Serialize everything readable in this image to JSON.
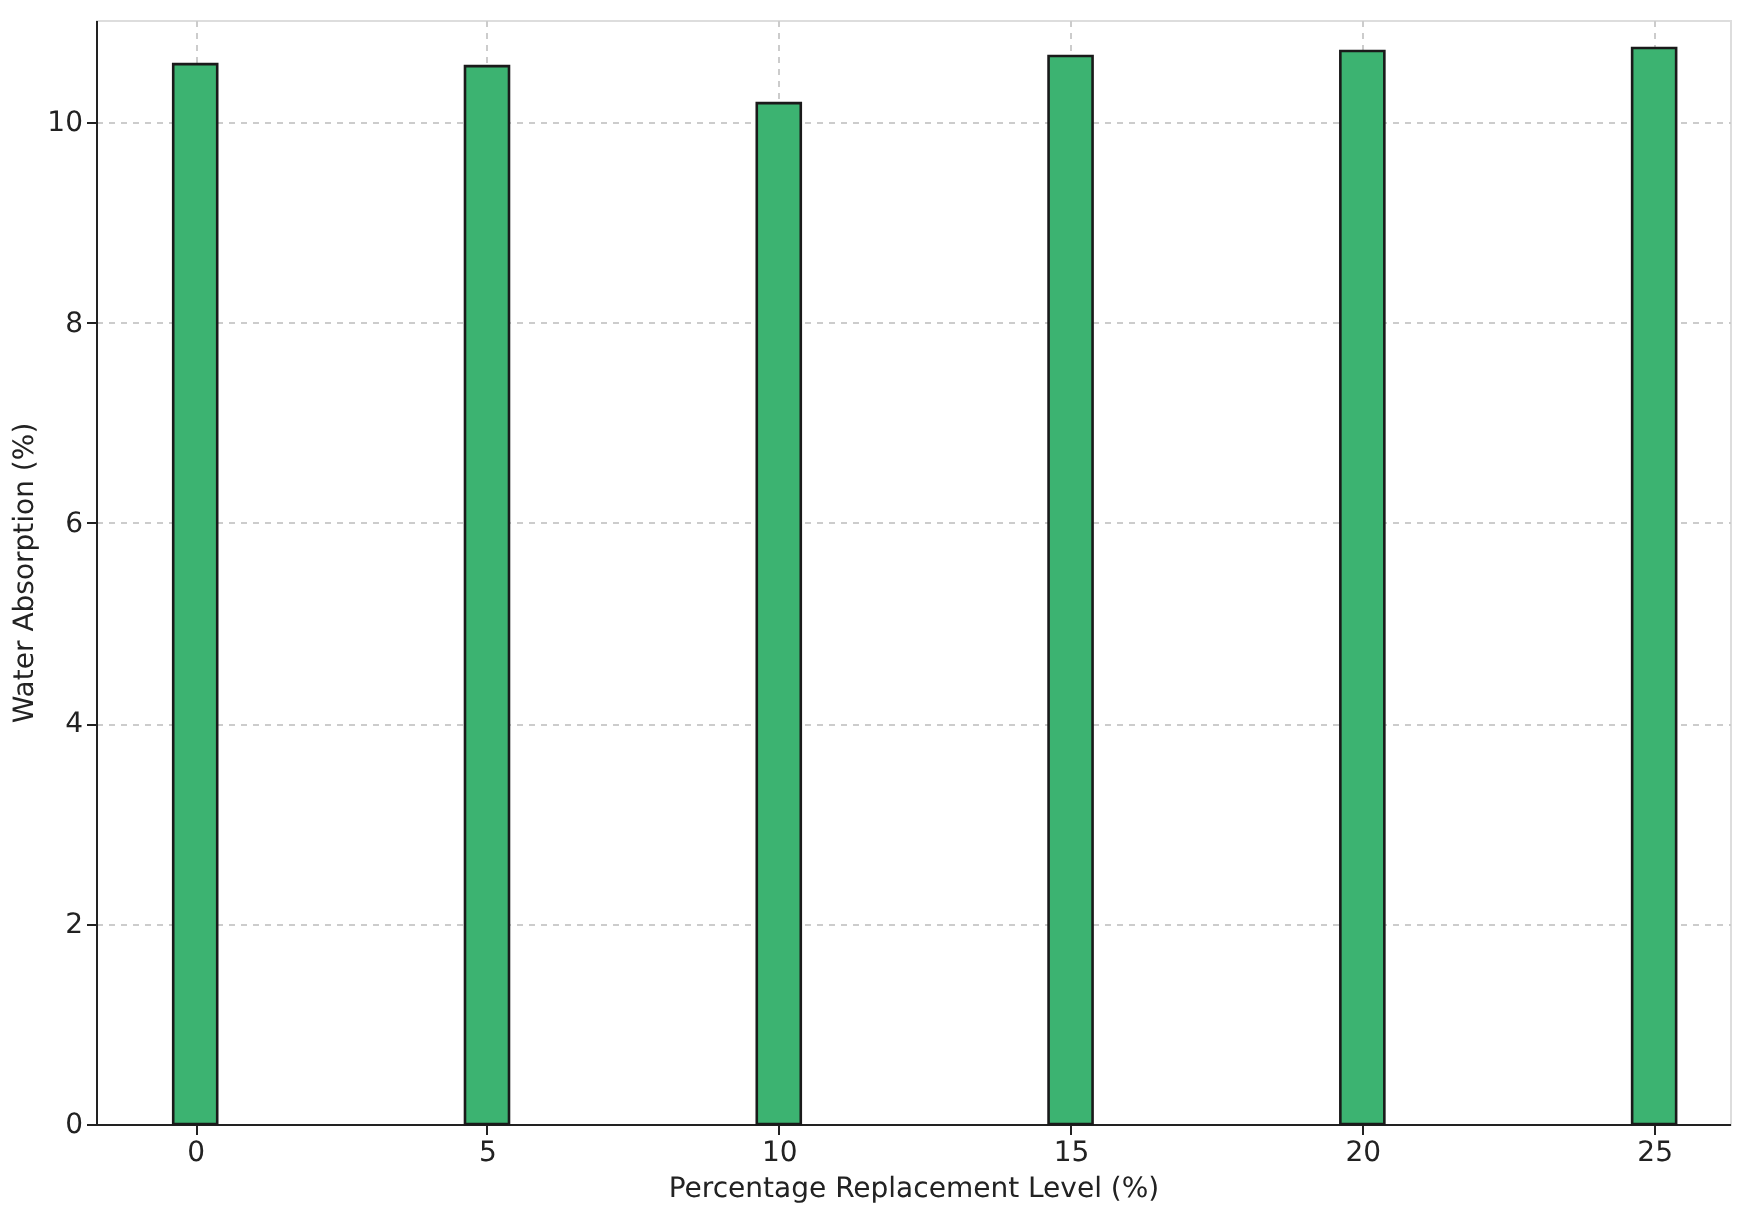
{
  "chart_data": {
    "type": "bar",
    "xlabel": "Percentage Replacement Level (%)",
    "ylabel": "Water Absorption (%)",
    "x": [
      0,
      5,
      10,
      15,
      20,
      25
    ],
    "values": [
      10.58,
      10.56,
      10.19,
      10.66,
      10.71,
      10.74
    ],
    "color": "#3cb371",
    "xlim": [
      -1.7,
      26.3
    ],
    "xticks": [
      0,
      5,
      10,
      15,
      20,
      25
    ],
    "ylim": [
      0,
      11.02
    ],
    "yticks": [
      0,
      2,
      4,
      6,
      8,
      10
    ],
    "grid": true
  }
}
